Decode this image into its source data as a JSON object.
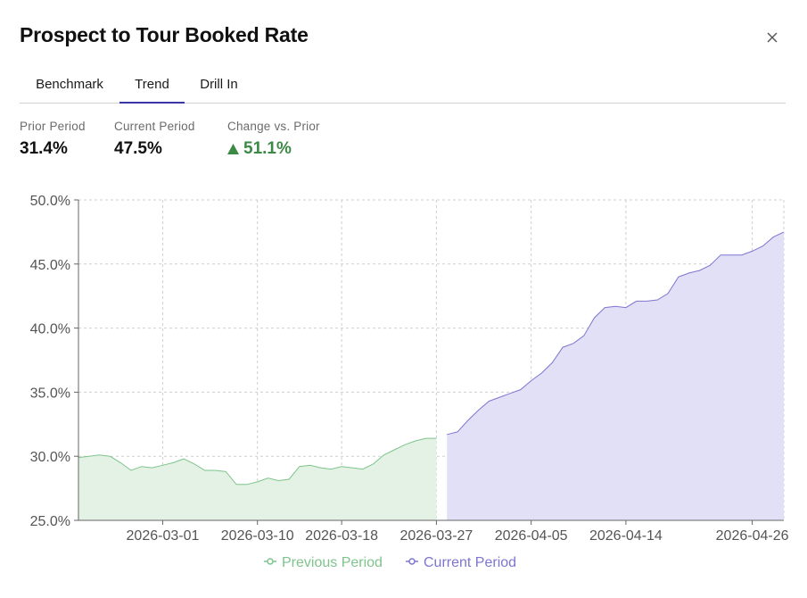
{
  "modal": {
    "title": "Prospect to Tour Booked Rate",
    "close_icon": "×"
  },
  "tabs": [
    {
      "label": "Benchmark",
      "active": false
    },
    {
      "label": "Trend",
      "active": true
    },
    {
      "label": "Drill In",
      "active": false
    }
  ],
  "kpis": {
    "prior_label": "Prior Period",
    "prior_value": "31.4%",
    "current_label": "Current Period",
    "current_value": "47.5%",
    "change_label": "Change vs. Prior",
    "change_value": "51.1%",
    "change_icon": "triangle-up-icon"
  },
  "colors": {
    "accent": "#3b37a8",
    "positive": "#3a8a46",
    "prior_line": "#7ec48c",
    "prior_fill": "#e3f2e4",
    "current_line": "#7d75d0",
    "current_fill": "#e2e0f6"
  },
  "chart_data": {
    "type": "area",
    "title": "",
    "xlabel": "",
    "ylabel": "",
    "ylim": [
      25,
      50
    ],
    "y_ticks": [
      "25.0%",
      "30.0%",
      "35.0%",
      "40.0%",
      "45.0%",
      "50.0%"
    ],
    "x_ticks": [
      "2026-03-01",
      "2026-03-10",
      "2026-03-18",
      "2026-03-27",
      "2026-04-05",
      "2026-04-14",
      "2026-04-26"
    ],
    "grid": true,
    "legend_position": "bottom",
    "series": [
      {
        "name": "Previous Period",
        "x": [
          "2026-02-21",
          "2026-02-22",
          "2026-02-23",
          "2026-02-24",
          "2026-02-25",
          "2026-02-26",
          "2026-02-27",
          "2026-02-28",
          "2026-03-01",
          "2026-03-02",
          "2026-03-03",
          "2026-03-04",
          "2026-03-05",
          "2026-03-06",
          "2026-03-07",
          "2026-03-08",
          "2026-03-09",
          "2026-03-10",
          "2026-03-11",
          "2026-03-12",
          "2026-03-13",
          "2026-03-14",
          "2026-03-15",
          "2026-03-16",
          "2026-03-17",
          "2026-03-18",
          "2026-03-19",
          "2026-03-20",
          "2026-03-21",
          "2026-03-22",
          "2026-03-23",
          "2026-03-24",
          "2026-03-25",
          "2026-03-26",
          "2026-03-27"
        ],
        "values": [
          29.9,
          30.0,
          30.1,
          30.0,
          29.5,
          28.9,
          29.2,
          29.1,
          29.3,
          29.5,
          29.8,
          29.4,
          28.9,
          28.9,
          28.8,
          27.8,
          27.8,
          28.0,
          28.3,
          28.1,
          28.2,
          29.2,
          29.3,
          29.1,
          29.0,
          29.2,
          29.1,
          29.0,
          29.4,
          30.1,
          30.5,
          30.9,
          31.2,
          31.4,
          31.4
        ]
      },
      {
        "name": "Current Period",
        "x": [
          "2026-03-28",
          "2026-03-29",
          "2026-03-30",
          "2026-03-31",
          "2026-04-01",
          "2026-04-02",
          "2026-04-03",
          "2026-04-04",
          "2026-04-05",
          "2026-04-06",
          "2026-04-07",
          "2026-04-08",
          "2026-04-09",
          "2026-04-10",
          "2026-04-11",
          "2026-04-12",
          "2026-04-13",
          "2026-04-14",
          "2026-04-15",
          "2026-04-16",
          "2026-04-17",
          "2026-04-18",
          "2026-04-19",
          "2026-04-20",
          "2026-04-21",
          "2026-04-22",
          "2026-04-23",
          "2026-04-24",
          "2026-04-25",
          "2026-04-26",
          "2026-04-27",
          "2026-04-28",
          "2026-04-29"
        ],
        "values": [
          31.7,
          31.9,
          32.8,
          33.6,
          34.3,
          34.6,
          34.9,
          35.2,
          35.9,
          36.5,
          37.3,
          38.5,
          38.8,
          39.4,
          40.8,
          41.6,
          41.7,
          41.6,
          42.1,
          42.1,
          42.2,
          42.7,
          44.0,
          44.3,
          44.5,
          44.9,
          45.7,
          45.7,
          45.7,
          46.0,
          46.4,
          47.1,
          47.5
        ]
      }
    ]
  }
}
